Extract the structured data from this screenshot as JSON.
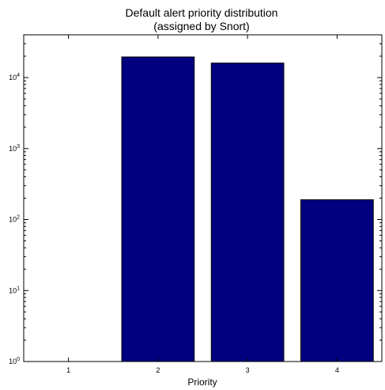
{
  "chart_data": {
    "type": "bar",
    "title_lines": [
      "Default alert priority distribution",
      "(assigned by Snort)"
    ],
    "xlabel": "Priority",
    "ylabel": "",
    "categories": [
      "1",
      "2",
      "3",
      "4"
    ],
    "values": [
      1,
      19500,
      16000,
      190
    ],
    "yscale": "log",
    "ylim": [
      1,
      40000
    ],
    "y_ticks": [
      {
        "base": "10",
        "exp": "0",
        "value": 1
      },
      {
        "base": "10",
        "exp": "1",
        "value": 10
      },
      {
        "base": "10",
        "exp": "2",
        "value": 100
      },
      {
        "base": "10",
        "exp": "3",
        "value": 1000
      },
      {
        "base": "10",
        "exp": "4",
        "value": 10000
      }
    ],
    "bar_color": "#000080",
    "grid": false,
    "legend": "none"
  }
}
